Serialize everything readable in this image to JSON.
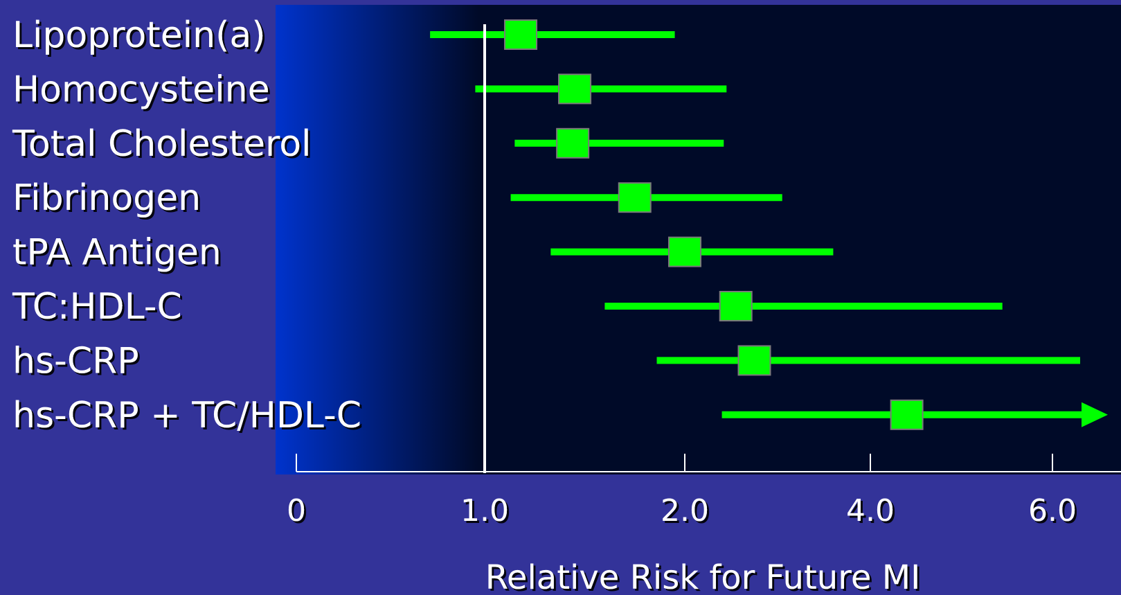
{
  "chart_data": {
    "type": "forest",
    "title": "",
    "xlabel": "Relative Risk for Future MI",
    "ylabel": "",
    "x_scale": "log",
    "xlim": [
      0,
      6.2
    ],
    "x_ticks": [
      {
        "value": 0,
        "label": "0"
      },
      {
        "value": 1.0,
        "label": "1.0"
      },
      {
        "value": 2.0,
        "label": "2.0"
      },
      {
        "value": 4.0,
        "label": "4.0"
      },
      {
        "value": 6.0,
        "label": "6.0"
      }
    ],
    "reference_line": 1.0,
    "grid": false,
    "colors": {
      "background": "#333399",
      "plot_dark": "#000a28",
      "plot_left": "#0033cc",
      "interval": "#00ff00",
      "marker": "#00ff00",
      "marker_border": "#7a7a7a",
      "reference": "#ffffff",
      "text": "#ffffff"
    },
    "rows": [
      {
        "label": "Lipoprotein(a)",
        "estimate": 1.18,
        "lower": 0.71,
        "upper": 1.95
      },
      {
        "label": "Homocysteine",
        "estimate": 1.45,
        "lower": 0.95,
        "upper": 2.45
      },
      {
        "label": "Total Cholesterol",
        "estimate": 1.44,
        "lower": 1.15,
        "upper": 2.42
      },
      {
        "label": "Fibrinogen",
        "estimate": 1.75,
        "lower": 1.13,
        "upper": 3.05
      },
      {
        "label": "tPA Antigen",
        "estimate": 2.0,
        "lower": 1.33,
        "upper": 3.6
      },
      {
        "label": "TC:HDL-C",
        "estimate": 2.55,
        "lower": 1.6,
        "upper": 5.45
      },
      {
        "label": "hs-CRP",
        "estimate": 2.75,
        "lower": 1.86,
        "upper": 6.3
      },
      {
        "label": "hs-CRP + TC/HDL-C",
        "estimate": 4.4,
        "lower": 2.4,
        "upper": 6.2,
        "upper_open": true
      }
    ]
  }
}
